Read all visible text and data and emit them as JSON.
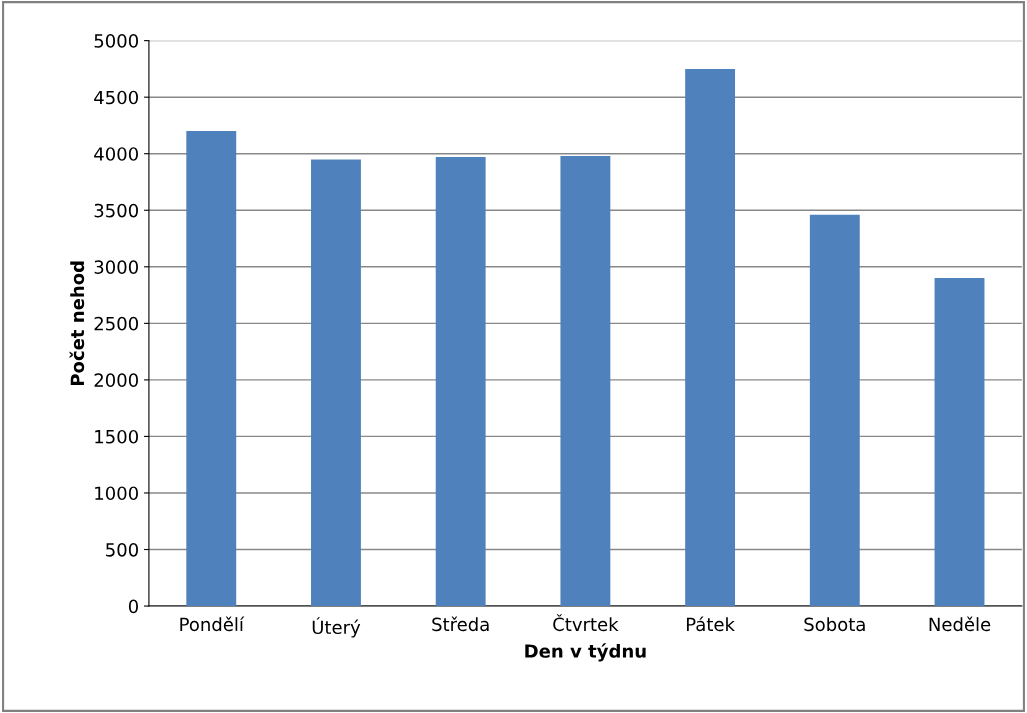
{
  "chart_data": {
    "type": "bar",
    "xlabel": "Den v týdnu",
    "ylabel": "Počet nehod",
    "categories": [
      "Pondělí",
      "Úterý",
      "Středa",
      "Čtvrtek",
      "Pátek",
      "Sobota",
      "Neděle"
    ],
    "values": [
      4200,
      3950,
      3970,
      3980,
      4750,
      3460,
      2900
    ],
    "color": "#4f81bd",
    "ylim": [
      0,
      5000
    ],
    "yticks": [
      0,
      500,
      1000,
      1500,
      2000,
      2500,
      3000,
      3500,
      4000,
      4500,
      5000
    ],
    "grid": "y"
  }
}
